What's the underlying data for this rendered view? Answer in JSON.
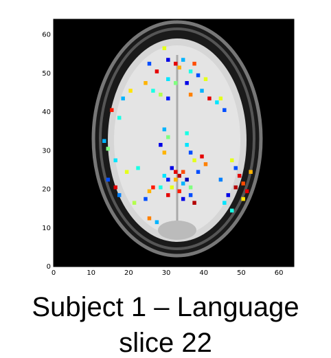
{
  "chart_data": {
    "type": "image",
    "title": "Subject 1 – Language",
    "subtitle": "slice 22",
    "xlim": [
      0,
      64
    ],
    "ylim": [
      0,
      64
    ],
    "xticks": [
      0,
      10,
      20,
      30,
      40,
      50,
      60
    ],
    "yticks": [
      0,
      10,
      20,
      30,
      40,
      50,
      60
    ],
    "colormap": "jet",
    "voxels": {
      "x": [
        29,
        30,
        32,
        33,
        34,
        36,
        37,
        38,
        40,
        39,
        35,
        32,
        30,
        27,
        25,
        24,
        26,
        28,
        30,
        36,
        41,
        43,
        45,
        44,
        20,
        18,
        15,
        17,
        29,
        30,
        28,
        29,
        35,
        36,
        37,
        35,
        39,
        40,
        38,
        31,
        32,
        33,
        34,
        32,
        34,
        30,
        29,
        31,
        35,
        36,
        33,
        28,
        30,
        36,
        37,
        34,
        47,
        48,
        49,
        50,
        48,
        46,
        45,
        50,
        51,
        44,
        47,
        52,
        13,
        14,
        16,
        14,
        16,
        17,
        19,
        22,
        25,
        24,
        26,
        21,
        25,
        27
      ],
      "y": [
        56,
        53,
        52,
        51,
        53,
        50,
        52,
        49,
        48,
        45,
        47,
        47,
        48,
        50,
        52,
        47,
        45,
        44,
        43,
        44,
        43,
        42,
        40,
        43,
        45,
        43,
        40,
        38,
        35,
        33,
        31,
        29,
        31,
        29,
        27,
        34,
        28,
        26,
        24,
        25,
        24,
        23,
        24,
        22,
        21,
        22,
        23,
        20,
        22,
        20,
        19,
        20,
        18,
        18,
        16,
        17,
        27,
        25,
        23,
        21,
        20,
        18,
        16,
        17,
        19,
        22,
        14,
        24,
        32,
        30,
        27,
        22,
        20,
        18,
        24,
        25,
        19,
        17,
        20,
        16,
        12,
        11
      ],
      "values": [
        0.6,
        0.1,
        0.9,
        0.7,
        0.3,
        0.4,
        0.8,
        0.2,
        0.6,
        0.3,
        0.1,
        0.5,
        0.35,
        0.9,
        0.2,
        0.7,
        0.4,
        0.55,
        0.15,
        0.75,
        0.9,
        0.35,
        0.2,
        0.6,
        0.65,
        0.3,
        0.85,
        0.4,
        0.3,
        0.5,
        0.1,
        0.7,
        0.35,
        0.2,
        0.6,
        0.4,
        0.9,
        0.75,
        0.2,
        0.1,
        0.9,
        0.95,
        0.8,
        0.7,
        0.3,
        0.15,
        0.35,
        0.6,
        0.05,
        0.5,
        0.85,
        0.4,
        0.9,
        0.2,
        0.95,
        0.1,
        0.6,
        0.2,
        0.9,
        0.8,
        0.95,
        0.1,
        0.35,
        0.65,
        0.9,
        0.25,
        0.4,
        0.7,
        0.3,
        0.5,
        0.35,
        0.2,
        0.9,
        0.25,
        0.6,
        0.4,
        0.7,
        0.2,
        0.85,
        0.55,
        0.75,
        0.3
      ]
    }
  }
}
